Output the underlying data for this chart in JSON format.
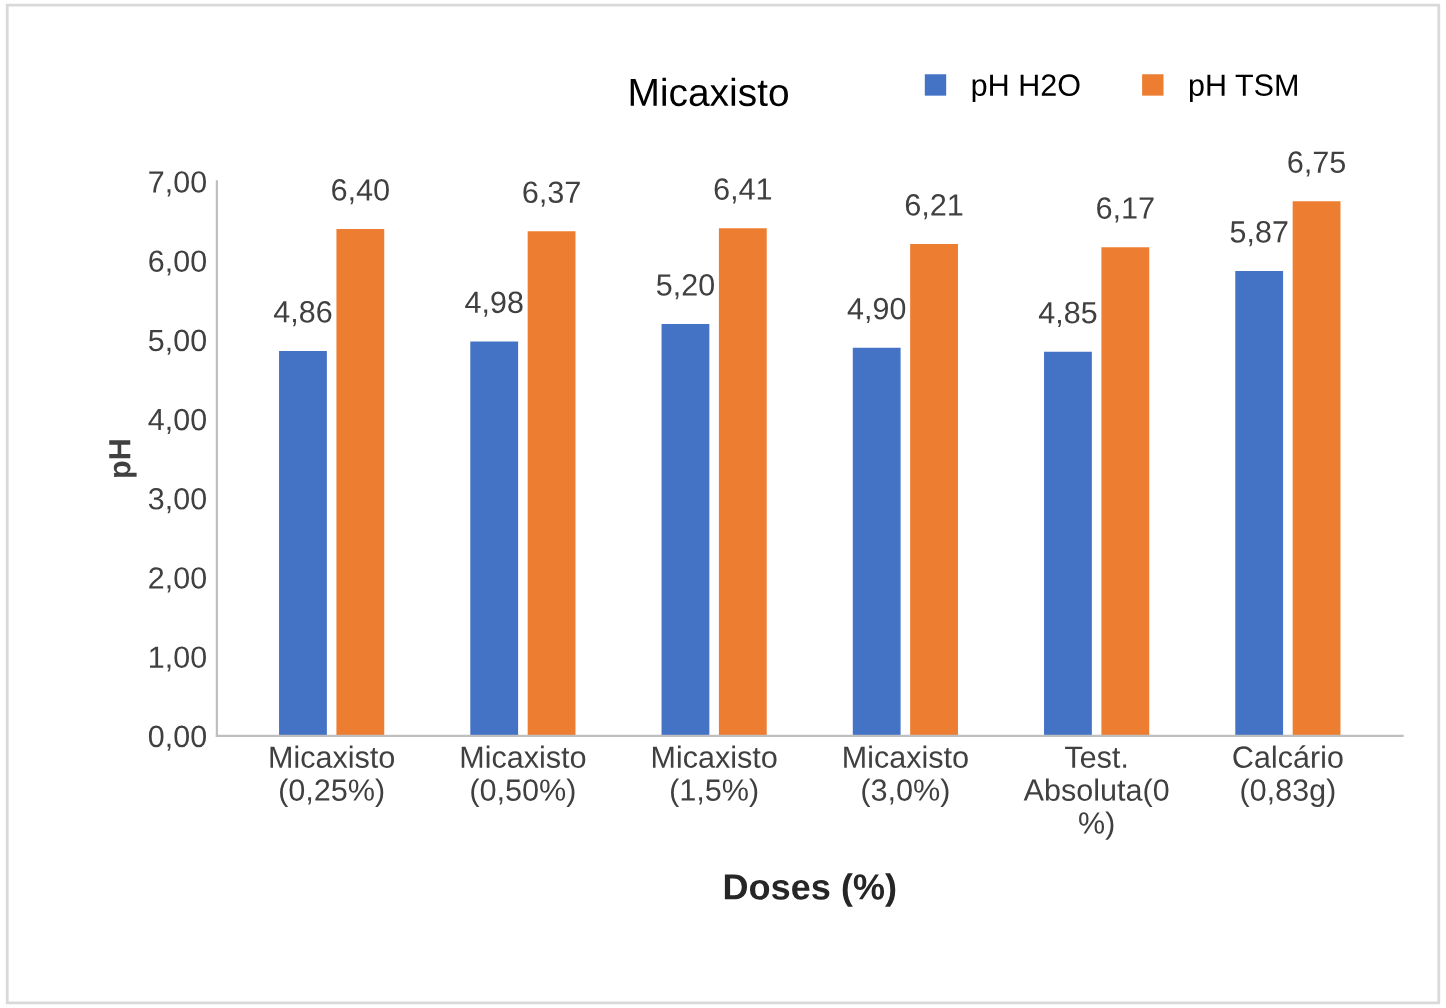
{
  "chart_data": {
    "type": "bar",
    "title": "Micaxisto",
    "xlabel": "Doses (%)",
    "ylabel": "pH",
    "categories": [
      "Micaxisto\n(0,25%)",
      "Micaxisto\n(0,50%)",
      "Micaxisto\n(1,5%)",
      "Micaxisto\n(3,0%)",
      "Test.\nAbsoluta(0\n%)",
      "Calcário\n(0,83g)"
    ],
    "series": [
      {
        "name": "pH H2O",
        "color": "#4472c4",
        "values": [
          4.86,
          4.98,
          5.2,
          4.9,
          4.85,
          5.87
        ],
        "value_labels": [
          "4,86",
          "4,98",
          "5,20",
          "4,90",
          "4,85",
          "5,87"
        ]
      },
      {
        "name": "pH TSM",
        "color": "#ed7d31",
        "values": [
          6.4,
          6.37,
          6.41,
          6.21,
          6.17,
          6.75
        ],
        "value_labels": [
          "6,40",
          "6,37",
          "6,41",
          "6,21",
          "6,17",
          "6,75"
        ]
      }
    ],
    "ylim": [
      0,
      7
    ],
    "yticks": [
      {
        "value": 0,
        "label": "0,00"
      },
      {
        "value": 1,
        "label": "1,00"
      },
      {
        "value": 2,
        "label": "2,00"
      },
      {
        "value": 3,
        "label": "3,00"
      },
      {
        "value": 4,
        "label": "4,00"
      },
      {
        "value": 5,
        "label": "5,00"
      },
      {
        "value": 6,
        "label": "6,00"
      },
      {
        "value": 7,
        "label": "7,00"
      }
    ],
    "legend": "top right",
    "grid": false
  }
}
